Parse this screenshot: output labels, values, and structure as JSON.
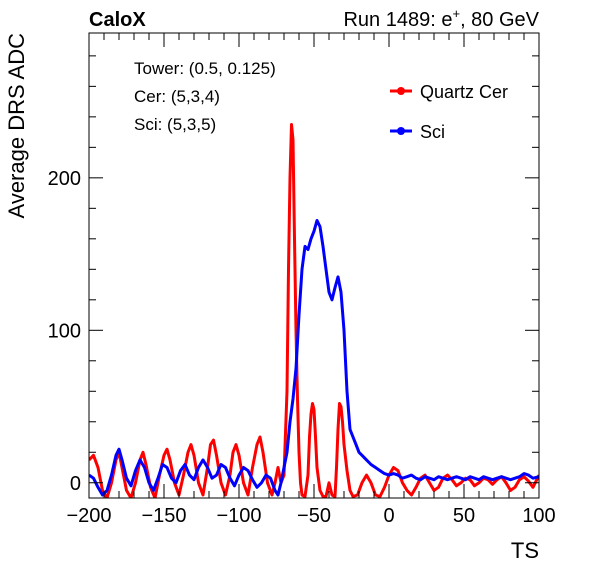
{
  "header": {
    "left_label": "CaloX",
    "run_prefix": "Run 1489: e",
    "run_superscript": "+",
    "run_suffix": ", 80 GeV"
  },
  "info": {
    "tower": "Tower: (0.5, 0.125)",
    "cer": "Cer: (5,3,4)",
    "sci": "Sci: (5,3,5)"
  },
  "chart_data": {
    "type": "line",
    "xlabel": "TS",
    "ylabel": "Average DRS ADC",
    "xlim": [
      -200,
      100
    ],
    "ylim": [
      -10,
      295
    ],
    "x_ticks": [
      -200,
      -150,
      -100,
      -50,
      0,
      50,
      100
    ],
    "y_ticks": [
      0,
      100,
      200
    ],
    "grid": false,
    "legend_position": "top-right",
    "series": [
      {
        "name": "Quartz Cer",
        "color": "#ff0000",
        "points": [
          [
            -200,
            15
          ],
          [
            -197,
            18
          ],
          [
            -194,
            10
          ],
          [
            -191,
            -5
          ],
          [
            -188,
            -10
          ],
          [
            -185,
            0
          ],
          [
            -182,
            15
          ],
          [
            -180,
            20
          ],
          [
            -178,
            10
          ],
          [
            -175,
            -5
          ],
          [
            -172,
            -10
          ],
          [
            -169,
            0
          ],
          [
            -166,
            15
          ],
          [
            -164,
            20
          ],
          [
            -162,
            12
          ],
          [
            -159,
            -3
          ],
          [
            -156,
            -10
          ],
          [
            -153,
            5
          ],
          [
            -150,
            18
          ],
          [
            -148,
            22
          ],
          [
            -146,
            15
          ],
          [
            -143,
            0
          ],
          [
            -140,
            -8
          ],
          [
            -137,
            5
          ],
          [
            -134,
            20
          ],
          [
            -132,
            25
          ],
          [
            -130,
            18
          ],
          [
            -127,
            0
          ],
          [
            -124,
            -8
          ],
          [
            -121,
            10
          ],
          [
            -119,
            25
          ],
          [
            -117,
            28
          ],
          [
            -115,
            18
          ],
          [
            -112,
            0
          ],
          [
            -109,
            -8
          ],
          [
            -106,
            5
          ],
          [
            -104,
            20
          ],
          [
            -102,
            25
          ],
          [
            -100,
            18
          ],
          [
            -97,
            0
          ],
          [
            -94,
            -8
          ],
          [
            -91,
            10
          ],
          [
            -88,
            25
          ],
          [
            -86,
            30
          ],
          [
            -84,
            20
          ],
          [
            -81,
            0
          ],
          [
            -78,
            -8
          ],
          [
            -76,
            0
          ],
          [
            -74,
            10
          ],
          [
            -72,
            0
          ],
          [
            -70,
            5
          ],
          [
            -68,
            60
          ],
          [
            -67,
            140
          ],
          [
            -66,
            200
          ],
          [
            -65,
            235
          ],
          [
            -64,
            225
          ],
          [
            -63,
            160
          ],
          [
            -62,
            100
          ],
          [
            -61,
            55
          ],
          [
            -60,
            20
          ],
          [
            -59,
            0
          ],
          [
            -58,
            -8
          ],
          [
            -56,
            -9
          ],
          [
            -54,
            5
          ],
          [
            -53,
            30
          ],
          [
            -52,
            45
          ],
          [
            -51,
            52
          ],
          [
            -50,
            48
          ],
          [
            -49,
            30
          ],
          [
            -48,
            10
          ],
          [
            -46,
            -5
          ],
          [
            -44,
            -9
          ],
          [
            -42,
            -9
          ],
          [
            -40,
            0
          ],
          [
            -38,
            -8
          ],
          [
            -36,
            -9
          ],
          [
            -35,
            10
          ],
          [
            -34,
            35
          ],
          [
            -33,
            52
          ],
          [
            -32,
            50
          ],
          [
            -31,
            40
          ],
          [
            -30,
            25
          ],
          [
            -28,
            8
          ],
          [
            -26,
            -5
          ],
          [
            -24,
            -9
          ],
          [
            -21,
            -8
          ],
          [
            -18,
            0
          ],
          [
            -15,
            5
          ],
          [
            -12,
            0
          ],
          [
            -9,
            -8
          ],
          [
            -6,
            -9
          ],
          [
            -3,
            -3
          ],
          [
            0,
            5
          ],
          [
            3,
            10
          ],
          [
            6,
            8
          ],
          [
            9,
            0
          ],
          [
            12,
            -5
          ],
          [
            15,
            -8
          ],
          [
            18,
            -3
          ],
          [
            21,
            3
          ],
          [
            24,
            5
          ],
          [
            27,
            0
          ],
          [
            30,
            -5
          ],
          [
            33,
            -3
          ],
          [
            36,
            3
          ],
          [
            39,
            5
          ],
          [
            42,
            2
          ],
          [
            45,
            -2
          ],
          [
            48,
            0
          ],
          [
            51,
            3
          ],
          [
            54,
            2
          ],
          [
            57,
            -2
          ],
          [
            60,
            0
          ],
          [
            63,
            3
          ],
          [
            66,
            2
          ],
          [
            69,
            -1
          ],
          [
            72,
            2
          ],
          [
            75,
            4
          ],
          [
            78,
            0
          ],
          [
            81,
            -5
          ],
          [
            84,
            -3
          ],
          [
            87,
            2
          ],
          [
            90,
            4
          ],
          [
            93,
            1
          ],
          [
            96,
            -3
          ],
          [
            100,
            5
          ]
        ]
      },
      {
        "name": "Sci",
        "color": "#0000ff",
        "points": [
          [
            -200,
            5
          ],
          [
            -197,
            3
          ],
          [
            -194,
            -3
          ],
          [
            -191,
            -8
          ],
          [
            -188,
            -5
          ],
          [
            -185,
            5
          ],
          [
            -182,
            18
          ],
          [
            -180,
            22
          ],
          [
            -178,
            15
          ],
          [
            -175,
            3
          ],
          [
            -172,
            -2
          ],
          [
            -169,
            8
          ],
          [
            -166,
            15
          ],
          [
            -163,
            10
          ],
          [
            -160,
            0
          ],
          [
            -157,
            -5
          ],
          [
            -154,
            3
          ],
          [
            -151,
            12
          ],
          [
            -148,
            10
          ],
          [
            -145,
            3
          ],
          [
            -142,
            0
          ],
          [
            -139,
            8
          ],
          [
            -136,
            12
          ],
          [
            -133,
            5
          ],
          [
            -130,
            2
          ],
          [
            -127,
            10
          ],
          [
            -124,
            15
          ],
          [
            -121,
            10
          ],
          [
            -118,
            3
          ],
          [
            -115,
            5
          ],
          [
            -112,
            12
          ],
          [
            -109,
            10
          ],
          [
            -106,
            3
          ],
          [
            -103,
            -2
          ],
          [
            -100,
            5
          ],
          [
            -97,
            10
          ],
          [
            -94,
            8
          ],
          [
            -91,
            2
          ],
          [
            -88,
            -3
          ],
          [
            -85,
            0
          ],
          [
            -82,
            5
          ],
          [
            -79,
            3
          ],
          [
            -76,
            -5
          ],
          [
            -74,
            -8
          ],
          [
            -72,
            0
          ],
          [
            -70,
            10
          ],
          [
            -68,
            20
          ],
          [
            -66,
            40
          ],
          [
            -64,
            55
          ],
          [
            -62,
            75
          ],
          [
            -60,
            110
          ],
          [
            -58,
            140
          ],
          [
            -56,
            155
          ],
          [
            -54,
            153
          ],
          [
            -52,
            160
          ],
          [
            -50,
            165
          ],
          [
            -48,
            172
          ],
          [
            -46,
            168
          ],
          [
            -44,
            155
          ],
          [
            -42,
            140
          ],
          [
            -40,
            125
          ],
          [
            -38,
            120
          ],
          [
            -36,
            128
          ],
          [
            -34,
            135
          ],
          [
            -32,
            125
          ],
          [
            -30,
            100
          ],
          [
            -28,
            60
          ],
          [
            -26,
            35
          ],
          [
            -24,
            30
          ],
          [
            -22,
            25
          ],
          [
            -20,
            20
          ],
          [
            -18,
            18
          ],
          [
            -15,
            15
          ],
          [
            -12,
            12
          ],
          [
            -9,
            10
          ],
          [
            -6,
            8
          ],
          [
            -3,
            6
          ],
          [
            0,
            5
          ],
          [
            3,
            6
          ],
          [
            6,
            5
          ],
          [
            9,
            3
          ],
          [
            12,
            4
          ],
          [
            15,
            5
          ],
          [
            18,
            3
          ],
          [
            21,
            2
          ],
          [
            24,
            4
          ],
          [
            27,
            3
          ],
          [
            30,
            2
          ],
          [
            33,
            4
          ],
          [
            36,
            3
          ],
          [
            39,
            2
          ],
          [
            42,
            3
          ],
          [
            45,
            4
          ],
          [
            48,
            3
          ],
          [
            51,
            2
          ],
          [
            54,
            4
          ],
          [
            57,
            3
          ],
          [
            60,
            2
          ],
          [
            63,
            4
          ],
          [
            66,
            3
          ],
          [
            69,
            2
          ],
          [
            72,
            3
          ],
          [
            75,
            4
          ],
          [
            78,
            3
          ],
          [
            81,
            2
          ],
          [
            84,
            3
          ],
          [
            87,
            4
          ],
          [
            90,
            6
          ],
          [
            93,
            5
          ],
          [
            96,
            3
          ],
          [
            100,
            4
          ]
        ]
      }
    ]
  }
}
